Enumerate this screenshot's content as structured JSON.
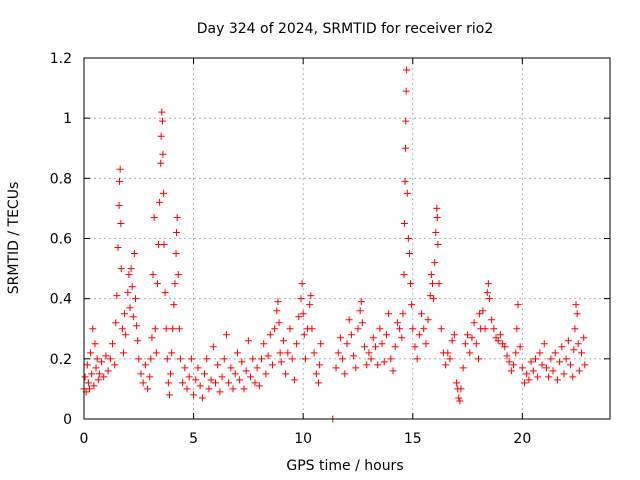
{
  "chart_data": {
    "type": "scatter",
    "title": "Day 324 of 2024, SRMTID for receiver rio2",
    "xlabel": "GPS time / hours",
    "ylabel": "SRMTID / TECUs",
    "xlim": [
      0,
      24
    ],
    "ylim": [
      0,
      1.2
    ],
    "xticks": [
      0,
      5,
      10,
      15,
      20
    ],
    "yticks": [
      0,
      0.2,
      0.4,
      0.6,
      0.8,
      1.0,
      1.2
    ],
    "xtick_labels": [
      "0",
      "5",
      "10",
      "15",
      "20"
    ],
    "ytick_labels": [
      "0",
      "0.2",
      "0.4",
      "0.6",
      "0.8",
      "1",
      "1.2"
    ],
    "grid": true,
    "marker": "+",
    "color": "#ff0000",
    "series": [
      {
        "name": "SRMTID",
        "points": [
          [
            0.0,
            0.1
          ],
          [
            0.05,
            0.14
          ],
          [
            0.1,
            0.09
          ],
          [
            0.15,
            0.18
          ],
          [
            0.2,
            0.12
          ],
          [
            0.25,
            0.1
          ],
          [
            0.3,
            0.22
          ],
          [
            0.35,
            0.15
          ],
          [
            0.4,
            0.3
          ],
          [
            0.45,
            0.11
          ],
          [
            0.5,
            0.25
          ],
          [
            0.55,
            0.17
          ],
          [
            0.6,
            0.2
          ],
          [
            0.65,
            0.13
          ],
          [
            0.7,
            0.15
          ],
          [
            0.8,
            0.19
          ],
          [
            0.9,
            0.14
          ],
          [
            1.0,
            0.21
          ],
          [
            1.1,
            0.16
          ],
          [
            1.2,
            0.2
          ],
          [
            1.3,
            0.25
          ],
          [
            1.4,
            0.18
          ],
          [
            1.45,
            0.32
          ],
          [
            1.5,
            0.41
          ],
          [
            1.55,
            0.57
          ],
          [
            1.6,
            0.71
          ],
          [
            1.62,
            0.79
          ],
          [
            1.65,
            0.83
          ],
          [
            1.68,
            0.65
          ],
          [
            1.7,
            0.5
          ],
          [
            1.75,
            0.3
          ],
          [
            1.8,
            0.22
          ],
          [
            1.85,
            0.35
          ],
          [
            1.9,
            0.28
          ],
          [
            2.0,
            0.42
          ],
          [
            2.05,
            0.48
          ],
          [
            2.1,
            0.37
          ],
          [
            2.15,
            0.5
          ],
          [
            2.2,
            0.44
          ],
          [
            2.25,
            0.34
          ],
          [
            2.3,
            0.55
          ],
          [
            2.35,
            0.4
          ],
          [
            2.4,
            0.31
          ],
          [
            2.45,
            0.26
          ],
          [
            2.5,
            0.2
          ],
          [
            2.6,
            0.15
          ],
          [
            2.7,
            0.12
          ],
          [
            2.8,
            0.18
          ],
          [
            2.9,
            0.1
          ],
          [
            3.0,
            0.14
          ],
          [
            3.05,
            0.2
          ],
          [
            3.1,
            0.27
          ],
          [
            3.15,
            0.48
          ],
          [
            3.2,
            0.67
          ],
          [
            3.25,
            0.3
          ],
          [
            3.3,
            0.22
          ],
          [
            3.35,
            0.45
          ],
          [
            3.4,
            0.58
          ],
          [
            3.45,
            0.72
          ],
          [
            3.5,
            0.85
          ],
          [
            3.52,
            0.94
          ],
          [
            3.55,
            1.02
          ],
          [
            3.58,
            0.99
          ],
          [
            3.6,
            0.88
          ],
          [
            3.63,
            0.75
          ],
          [
            3.65,
            0.58
          ],
          [
            3.7,
            0.42
          ],
          [
            3.75,
            0.3
          ],
          [
            3.8,
            0.2
          ],
          [
            3.85,
            0.12
          ],
          [
            3.9,
            0.08
          ],
          [
            3.95,
            0.15
          ],
          [
            4.0,
            0.22
          ],
          [
            4.05,
            0.3
          ],
          [
            4.1,
            0.38
          ],
          [
            4.15,
            0.45
          ],
          [
            4.2,
            0.55
          ],
          [
            4.22,
            0.62
          ],
          [
            4.25,
            0.67
          ],
          [
            4.3,
            0.48
          ],
          [
            4.35,
            0.3
          ],
          [
            4.4,
            0.2
          ],
          [
            4.5,
            0.12
          ],
          [
            4.6,
            0.17
          ],
          [
            4.7,
            0.1
          ],
          [
            4.8,
            0.14
          ],
          [
            4.9,
            0.2
          ],
          [
            5.0,
            0.08
          ],
          [
            5.1,
            0.13
          ],
          [
            5.2,
            0.17
          ],
          [
            5.3,
            0.11
          ],
          [
            5.4,
            0.07
          ],
          [
            5.5,
            0.15
          ],
          [
            5.6,
            0.2
          ],
          [
            5.7,
            0.1
          ],
          [
            5.8,
            0.13
          ],
          [
            5.9,
            0.24
          ],
          [
            6.0,
            0.12
          ],
          [
            6.1,
            0.18
          ],
          [
            6.2,
            0.09
          ],
          [
            6.3,
            0.14
          ],
          [
            6.4,
            0.2
          ],
          [
            6.5,
            0.28
          ],
          [
            6.6,
            0.12
          ],
          [
            6.7,
            0.17
          ],
          [
            6.8,
            0.1
          ],
          [
            6.9,
            0.15
          ],
          [
            7.0,
            0.22
          ],
          [
            7.1,
            0.13
          ],
          [
            7.2,
            0.19
          ],
          [
            7.3,
            0.1
          ],
          [
            7.4,
            0.16
          ],
          [
            7.5,
            0.26
          ],
          [
            7.6,
            0.14
          ],
          [
            7.7,
            0.2
          ],
          [
            7.8,
            0.12
          ],
          [
            7.9,
            0.17
          ],
          [
            8.0,
            0.11
          ],
          [
            8.1,
            0.2
          ],
          [
            8.2,
            0.25
          ],
          [
            8.3,
            0.15
          ],
          [
            8.4,
            0.21
          ],
          [
            8.5,
            0.28
          ],
          [
            8.6,
            0.18
          ],
          [
            8.7,
            0.3
          ],
          [
            8.8,
            0.36
          ],
          [
            8.85,
            0.39
          ],
          [
            8.9,
            0.32
          ],
          [
            8.95,
            0.22
          ],
          [
            9.0,
            0.19
          ],
          [
            9.1,
            0.26
          ],
          [
            9.2,
            0.15
          ],
          [
            9.3,
            0.22
          ],
          [
            9.4,
            0.3
          ],
          [
            9.5,
            0.2
          ],
          [
            9.6,
            0.13
          ],
          [
            9.7,
            0.25
          ],
          [
            9.8,
            0.34
          ],
          [
            9.9,
            0.4
          ],
          [
            9.95,
            0.45
          ],
          [
            10.0,
            0.35
          ],
          [
            10.05,
            0.28
          ],
          [
            10.1,
            0.2
          ],
          [
            10.2,
            0.3
          ],
          [
            10.3,
            0.38
          ],
          [
            10.35,
            0.41
          ],
          [
            10.4,
            0.3
          ],
          [
            10.5,
            0.22
          ],
          [
            10.6,
            0.15
          ],
          [
            10.7,
            0.12
          ],
          [
            10.75,
            0.18
          ],
          [
            10.8,
            0.25
          ],
          [
            11.35,
            0.0
          ],
          [
            11.5,
            0.17
          ],
          [
            11.6,
            0.22
          ],
          [
            11.7,
            0.27
          ],
          [
            11.8,
            0.2
          ],
          [
            11.9,
            0.15
          ],
          [
            12.0,
            0.25
          ],
          [
            12.1,
            0.33
          ],
          [
            12.2,
            0.28
          ],
          [
            12.3,
            0.21
          ],
          [
            12.4,
            0.17
          ],
          [
            12.5,
            0.3
          ],
          [
            12.6,
            0.36
          ],
          [
            12.65,
            0.39
          ],
          [
            12.7,
            0.32
          ],
          [
            12.8,
            0.24
          ],
          [
            12.9,
            0.18
          ],
          [
            13.0,
            0.22
          ],
          [
            13.1,
            0.2
          ],
          [
            13.2,
            0.27
          ],
          [
            13.3,
            0.24
          ],
          [
            13.4,
            0.18
          ],
          [
            13.5,
            0.3
          ],
          [
            13.6,
            0.25
          ],
          [
            13.7,
            0.19
          ],
          [
            13.8,
            0.28
          ],
          [
            13.9,
            0.35
          ],
          [
            14.0,
            0.2
          ],
          [
            14.1,
            0.16
          ],
          [
            14.2,
            0.24
          ],
          [
            14.3,
            0.32
          ],
          [
            14.4,
            0.3
          ],
          [
            14.5,
            0.27
          ],
          [
            14.55,
            0.35
          ],
          [
            14.6,
            0.48
          ],
          [
            14.62,
            0.65
          ],
          [
            14.65,
            0.79
          ],
          [
            14.67,
            0.9
          ],
          [
            14.68,
            0.99
          ],
          [
            14.7,
            1.09
          ],
          [
            14.72,
            1.16
          ],
          [
            14.75,
            0.75
          ],
          [
            14.8,
            0.6
          ],
          [
            14.85,
            0.55
          ],
          [
            14.9,
            0.45
          ],
          [
            14.95,
            0.38
          ],
          [
            15.0,
            0.3
          ],
          [
            15.1,
            0.24
          ],
          [
            15.2,
            0.2
          ],
          [
            15.3,
            0.28
          ],
          [
            15.4,
            0.35
          ],
          [
            15.5,
            0.3
          ],
          [
            15.6,
            0.25
          ],
          [
            15.7,
            0.33
          ],
          [
            15.8,
            0.41
          ],
          [
            15.85,
            0.48
          ],
          [
            15.9,
            0.45
          ],
          [
            15.95,
            0.4
          ],
          [
            16.0,
            0.52
          ],
          [
            16.05,
            0.62
          ],
          [
            16.1,
            0.7
          ],
          [
            16.12,
            0.67
          ],
          [
            16.15,
            0.58
          ],
          [
            16.2,
            0.45
          ],
          [
            16.3,
            0.3
          ],
          [
            16.4,
            0.22
          ],
          [
            16.5,
            0.18
          ],
          [
            16.6,
            0.22
          ],
          [
            16.7,
            0.2
          ],
          [
            16.8,
            0.26
          ],
          [
            16.9,
            0.28
          ],
          [
            17.0,
            0.12
          ],
          [
            17.05,
            0.1
          ],
          [
            17.1,
            0.07
          ],
          [
            17.15,
            0.06
          ],
          [
            17.2,
            0.1
          ],
          [
            17.3,
            0.17
          ],
          [
            17.4,
            0.25
          ],
          [
            17.5,
            0.28
          ],
          [
            17.6,
            0.22
          ],
          [
            17.7,
            0.27
          ],
          [
            17.8,
            0.32
          ],
          [
            17.9,
            0.25
          ],
          [
            18.0,
            0.2
          ],
          [
            18.05,
            0.35
          ],
          [
            18.1,
            0.3
          ],
          [
            18.2,
            0.36
          ],
          [
            18.3,
            0.3
          ],
          [
            18.4,
            0.42
          ],
          [
            18.45,
            0.45
          ],
          [
            18.5,
            0.4
          ],
          [
            18.6,
            0.33
          ],
          [
            18.7,
            0.3
          ],
          [
            18.8,
            0.27
          ],
          [
            18.9,
            0.26
          ],
          [
            19.0,
            0.28
          ],
          [
            19.1,
            0.25
          ],
          [
            19.2,
            0.24
          ],
          [
            19.3,
            0.21
          ],
          [
            19.4,
            0.19
          ],
          [
            19.5,
            0.16
          ],
          [
            19.6,
            0.18
          ],
          [
            19.7,
            0.22
          ],
          [
            19.75,
            0.3
          ],
          [
            19.8,
            0.38
          ],
          [
            19.9,
            0.24
          ],
          [
            20.0,
            0.17
          ],
          [
            20.1,
            0.12
          ],
          [
            20.2,
            0.15
          ],
          [
            20.3,
            0.13
          ],
          [
            20.4,
            0.19
          ],
          [
            20.5,
            0.16
          ],
          [
            20.6,
            0.2
          ],
          [
            20.7,
            0.14
          ],
          [
            20.8,
            0.22
          ],
          [
            20.9,
            0.18
          ],
          [
            21.0,
            0.25
          ],
          [
            21.1,
            0.17
          ],
          [
            21.2,
            0.14
          ],
          [
            21.3,
            0.2
          ],
          [
            21.4,
            0.16
          ],
          [
            21.5,
            0.22
          ],
          [
            21.6,
            0.13
          ],
          [
            21.7,
            0.19
          ],
          [
            21.8,
            0.24
          ],
          [
            21.9,
            0.15
          ],
          [
            22.0,
            0.2
          ],
          [
            22.1,
            0.26
          ],
          [
            22.2,
            0.18
          ],
          [
            22.3,
            0.14
          ],
          [
            22.35,
            0.23
          ],
          [
            22.4,
            0.3
          ],
          [
            22.45,
            0.38
          ],
          [
            22.5,
            0.35
          ],
          [
            22.55,
            0.25
          ],
          [
            22.6,
            0.16
          ],
          [
            22.7,
            0.22
          ],
          [
            22.8,
            0.27
          ],
          [
            22.85,
            0.18
          ]
        ]
      }
    ]
  }
}
